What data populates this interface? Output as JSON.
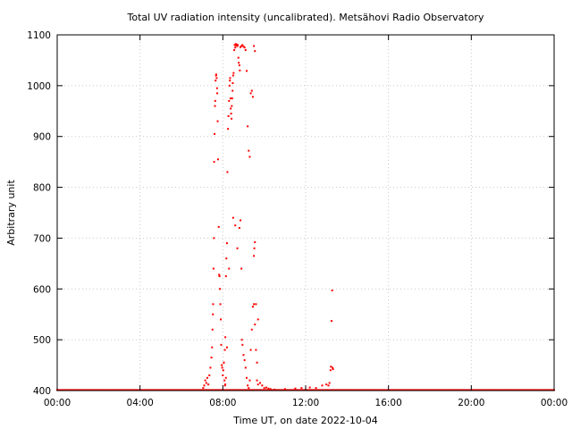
{
  "chart_data": {
    "type": "scatter",
    "title": "Total UV radiation intensity (uncalibrated). Metsähovi Radio Observatory",
    "xlabel": "Time UT, on date 2022-10-04",
    "ylabel": "Arbitrary unit",
    "xlim": [
      0,
      24
    ],
    "ylim": [
      400,
      1100
    ],
    "x_ticks": [
      0,
      4,
      8,
      12,
      16,
      20,
      24
    ],
    "x_tick_labels": [
      "00:00",
      "04:00",
      "08:00",
      "12:00",
      "16:00",
      "20:00",
      "00:00"
    ],
    "y_ticks": [
      400,
      500,
      600,
      700,
      800,
      900,
      1000,
      1100
    ],
    "y_tick_labels": [
      "400",
      "500",
      "600",
      "700",
      "800",
      "900",
      "1000",
      "1100"
    ],
    "grid": true,
    "marker_color": "#ff0000",
    "baseline": {
      "value": 401,
      "x_start": 0.0,
      "x_end": 24.0,
      "step_hours": 0.05
    },
    "points": [
      [
        7.05,
        405
      ],
      [
        7.1,
        410
      ],
      [
        7.15,
        420
      ],
      [
        7.2,
        415
      ],
      [
        7.25,
        425
      ],
      [
        7.3,
        412
      ],
      [
        7.35,
        430
      ],
      [
        7.4,
        445
      ],
      [
        7.45,
        465
      ],
      [
        7.48,
        485
      ],
      [
        7.5,
        520
      ],
      [
        7.52,
        550
      ],
      [
        7.53,
        570
      ],
      [
        7.55,
        640
      ],
      [
        7.57,
        700
      ],
      [
        7.58,
        850
      ],
      [
        7.6,
        905
      ],
      [
        7.62,
        960
      ],
      [
        7.63,
        970
      ],
      [
        7.65,
        1010
      ],
      [
        7.67,
        1020
      ],
      [
        7.68,
        1022
      ],
      [
        7.7,
        1015
      ],
      [
        7.72,
        995
      ],
      [
        7.73,
        985
      ],
      [
        7.75,
        930
      ],
      [
        7.77,
        855
      ],
      [
        7.8,
        722
      ],
      [
        7.82,
        628
      ],
      [
        7.84,
        625
      ],
      [
        7.86,
        600
      ],
      [
        7.88,
        570
      ],
      [
        7.9,
        540
      ],
      [
        7.92,
        490
      ],
      [
        7.95,
        450
      ],
      [
        7.97,
        445
      ],
      [
        8.0,
        430
      ],
      [
        8.02,
        440
      ],
      [
        8.05,
        455
      ],
      [
        8.08,
        420
      ],
      [
        8.1,
        480
      ],
      [
        8.12,
        505
      ],
      [
        8.15,
        625
      ],
      [
        8.17,
        660
      ],
      [
        8.2,
        690
      ],
      [
        8.22,
        830
      ],
      [
        8.25,
        915
      ],
      [
        8.27,
        940
      ],
      [
        8.3,
        970
      ],
      [
        8.32,
        1000
      ],
      [
        8.34,
        1010
      ],
      [
        8.35,
        1015
      ],
      [
        8.37,
        975
      ],
      [
        8.38,
        955
      ],
      [
        8.4,
        945
      ],
      [
        8.42,
        935
      ],
      [
        8.43,
        960
      ],
      [
        8.45,
        975
      ],
      [
        8.47,
        990
      ],
      [
        8.48,
        1005
      ],
      [
        8.5,
        1020
      ],
      [
        8.52,
        1025
      ],
      [
        8.55,
        1070
      ],
      [
        8.57,
        1080
      ],
      [
        8.6,
        1075
      ],
      [
        8.62,
        1082
      ],
      [
        8.65,
        1079
      ],
      [
        8.67,
        1081
      ],
      [
        8.7,
        1078
      ],
      [
        8.72,
        1080
      ],
      [
        8.75,
        1055
      ],
      [
        8.77,
        1045
      ],
      [
        8.8,
        1040
      ],
      [
        8.82,
        1030
      ],
      [
        8.85,
        1076
      ],
      [
        8.9,
        1078
      ],
      [
        8.95,
        1080
      ],
      [
        9.0,
        1077
      ],
      [
        9.05,
        1075
      ],
      [
        9.1,
        1070
      ],
      [
        9.15,
        1029
      ],
      [
        9.2,
        920
      ],
      [
        9.25,
        872
      ],
      [
        9.3,
        860
      ],
      [
        9.35,
        985
      ],
      [
        9.4,
        990
      ],
      [
        9.45,
        978
      ],
      [
        9.5,
        1078
      ],
      [
        9.55,
        1068
      ],
      [
        8.05,
        455
      ],
      [
        8.1,
        410
      ],
      [
        8.12,
        412
      ],
      [
        8.15,
        425
      ],
      [
        8.2,
        485
      ],
      [
        8.3,
        640
      ],
      [
        8.5,
        740
      ],
      [
        8.6,
        725
      ],
      [
        8.7,
        680
      ],
      [
        8.8,
        720
      ],
      [
        8.85,
        735
      ],
      [
        8.9,
        640
      ],
      [
        8.92,
        500
      ],
      [
        8.95,
        490
      ],
      [
        9.0,
        470
      ],
      [
        9.05,
        460
      ],
      [
        9.1,
        445
      ],
      [
        9.15,
        425
      ],
      [
        9.2,
        410
      ],
      [
        9.25,
        405
      ],
      [
        9.3,
        420
      ],
      [
        9.35,
        480
      ],
      [
        9.4,
        520
      ],
      [
        9.45,
        565
      ],
      [
        9.5,
        570
      ],
      [
        9.55,
        530
      ],
      [
        9.6,
        480
      ],
      [
        9.65,
        455
      ],
      [
        9.7,
        540
      ],
      [
        9.5,
        665
      ],
      [
        9.52,
        680
      ],
      [
        9.55,
        692
      ],
      [
        9.6,
        570
      ],
      [
        9.65,
        420
      ],
      [
        9.7,
        412
      ],
      [
        9.8,
        415
      ],
      [
        9.9,
        410
      ],
      [
        10.0,
        405
      ],
      [
        10.1,
        406
      ],
      [
        10.2,
        404
      ],
      [
        10.3,
        403
      ],
      [
        10.5,
        402
      ],
      [
        11.0,
        403
      ],
      [
        11.5,
        404
      ],
      [
        11.8,
        405
      ],
      [
        12.2,
        406
      ],
      [
        12.5,
        405
      ],
      [
        12.8,
        410
      ],
      [
        13.0,
        412
      ],
      [
        13.1,
        410
      ],
      [
        13.15,
        415
      ],
      [
        13.2,
        440
      ],
      [
        13.22,
        447
      ],
      [
        13.25,
        537
      ],
      [
        13.28,
        597
      ],
      [
        13.3,
        445
      ],
      [
        13.32,
        442
      ]
    ]
  }
}
